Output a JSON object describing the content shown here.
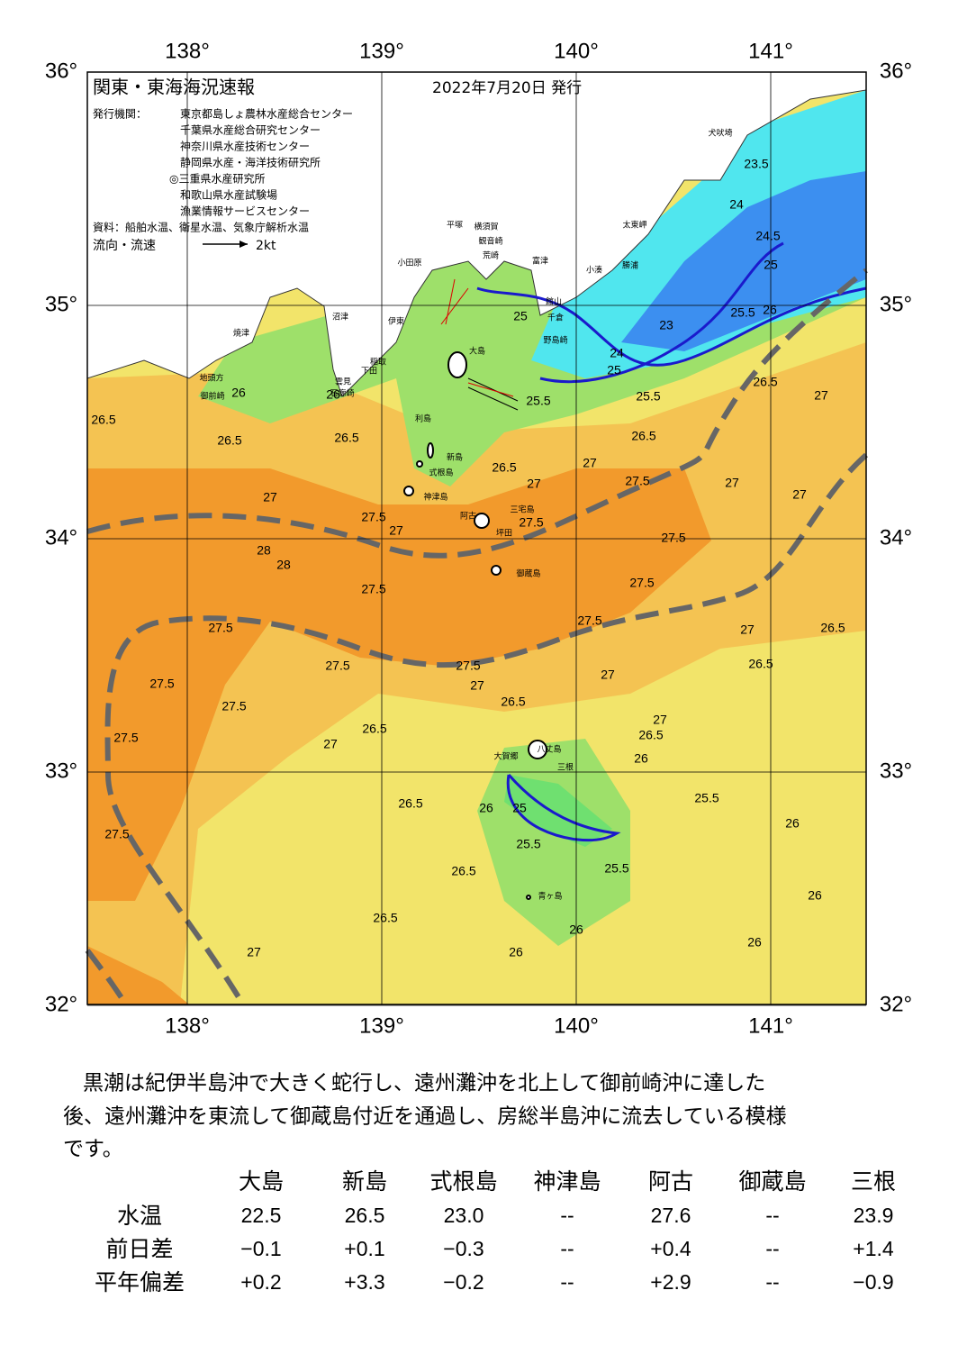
{
  "header": {
    "title": "関東・東海海況速報",
    "date": "2022年7月20日 発行",
    "issuer_label": "発行機関：",
    "issuers": [
      "東京都島しょ農林水産総合センター",
      "千葉県水産総合研究センター",
      "神奈川県水産技術センター",
      "静岡県水産・海洋技術研究所",
      "◎三重県水産研究所",
      "和歌山県水産試験場",
      "漁業情報サービスセンター"
    ],
    "source": "資料：船舶水温、衛星水温、気象庁解析水温",
    "legend_label": "流向・流速",
    "legend_speed": "2kt"
  },
  "map": {
    "lon_ticks": [
      {
        "value": 138,
        "label": "138°"
      },
      {
        "value": 139,
        "label": "139°"
      },
      {
        "value": 140,
        "label": "140°"
      },
      {
        "value": 141,
        "label": "141°"
      }
    ],
    "lat_ticks": [
      {
        "value": 36,
        "label": "36°"
      },
      {
        "value": 35,
        "label": "35°"
      },
      {
        "value": 34,
        "label": "34°"
      },
      {
        "value": 33,
        "label": "33°"
      },
      {
        "value": 32,
        "label": "32°"
      }
    ],
    "places": [
      "犬吠埼",
      "太東岬",
      "勝浦",
      "小湊",
      "館山",
      "千倉",
      "野島崎",
      "富津",
      "横須賀",
      "観音崎",
      "荒崎",
      "平塚",
      "小田原",
      "伊東",
      "沼津",
      "焼津",
      "地頭方",
      "御前崎",
      "稲取",
      "下田",
      "雲見",
      "石廊崎",
      "大島",
      "利島",
      "新島",
      "式根島",
      "神津島",
      "三宅島",
      "阿古",
      "坪田",
      "御蔵島",
      "八丈島",
      "三根",
      "大賀郷",
      "青ヶ島"
    ],
    "contour_labels": [
      "26.5",
      "26",
      "26.5",
      "27",
      "27.5",
      "27",
      "28",
      "28",
      "27.5",
      "27.5",
      "27.5",
      "27.5",
      "27.5",
      "27.5",
      "27",
      "27.5",
      "27.5",
      "27",
      "26.5",
      "26.5",
      "26.5",
      "26.5",
      "27",
      "26",
      "26",
      "25.5",
      "25",
      "25.5",
      "26",
      "25.5",
      "26",
      "26",
      "26",
      "26",
      "26.5",
      "27",
      "26.5",
      "27",
      "27",
      "26.5",
      "26.5",
      "27.5",
      "27.5",
      "27.5",
      "27",
      "27.5",
      "27",
      "26.5",
      "27",
      "27.5",
      "26.5",
      "25.5",
      "25.5",
      "25",
      "24",
      "23",
      "25",
      "25.5",
      "26",
      "26.5",
      "27",
      "27",
      "24",
      "23.5",
      "24.5",
      "25",
      "26",
      "26.5"
    ]
  },
  "summary": [
    "黒潮は紀伊半島沖で大きく蛇行し、遠州灘沖を北上して御前崎沖に達した",
    "後、遠州灘沖を東流して御蔵島付近を通過し、房総半島沖に流去している模様",
    "です。"
  ],
  "table": {
    "columns": [
      "大島",
      "新島",
      "式根島",
      "神津島",
      "阿古",
      "御蔵島",
      "三根"
    ],
    "rows": [
      {
        "label": "水温",
        "values": [
          "22.5",
          "26.5",
          "23.0",
          "--",
          "27.6",
          "--",
          "23.9"
        ]
      },
      {
        "label": "前日差",
        "values": [
          "−0.1",
          "+0.1",
          "−0.3",
          "--",
          "+0.4",
          "--",
          "+1.4"
        ]
      },
      {
        "label": "平年偏差",
        "values": [
          "+0.2",
          "+3.3",
          "−0.2",
          "--",
          "+2.9",
          "--",
          "−0.9"
        ]
      }
    ]
  }
}
